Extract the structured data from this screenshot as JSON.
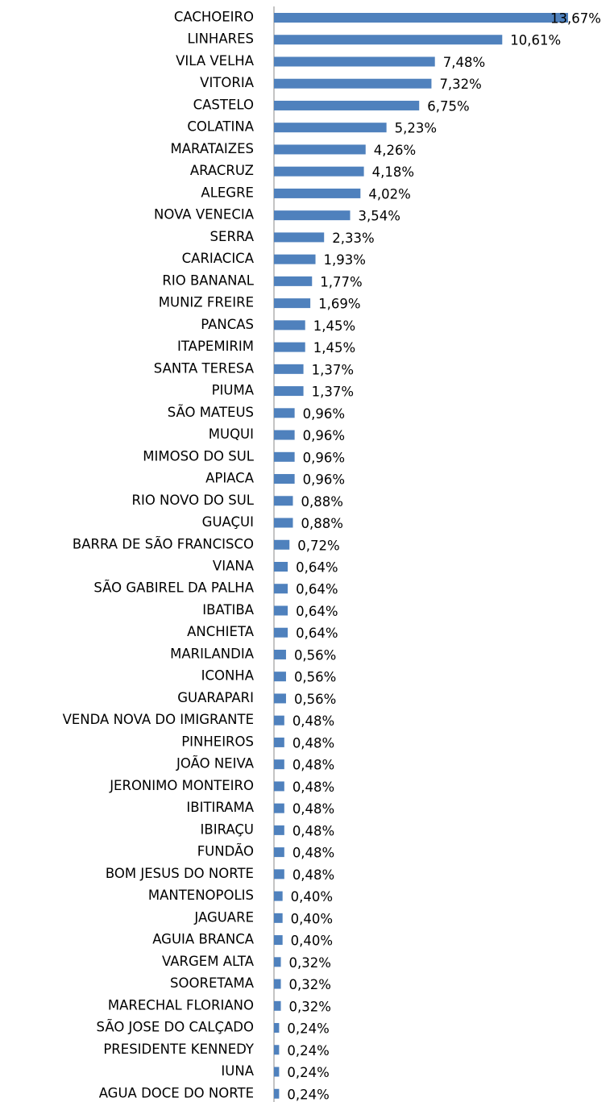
{
  "chart_data": {
    "type": "bar",
    "orientation": "horizontal",
    "color": "#4f81bd",
    "categories": [
      "CACHOEIRO",
      "LINHARES",
      "VILA VELHA",
      "VITORIA",
      "CASTELO",
      "COLATINA",
      "MARATAIZES",
      "ARACRUZ",
      "ALEGRE",
      "NOVA VENECIA",
      "SERRA",
      "CARIACICA",
      "RIO BANANAL",
      "MUNIZ FREIRE",
      "PANCAS",
      "ITAPEMIRIM",
      "SANTA TERESA",
      "PIUMA",
      "SÃO MATEUS",
      "MUQUI",
      "MIMOSO DO SUL",
      "APIACA",
      "RIO NOVO DO SUL",
      "GUAÇUI",
      "BARRA DE SÃO FRANCISCO",
      "VIANA",
      "SÃO GABIREL  DA PALHA",
      "IBATIBA",
      "ANCHIETA",
      "MARILANDIA",
      "ICONHA",
      "GUARAPARI",
      "VENDA NOVA DO IMIGRANTE",
      "PINHEIROS",
      "JOÃO NEIVA",
      "JERONIMO MONTEIRO",
      "IBITIRAMA",
      "IBIRAÇU",
      "FUNDÃO",
      "BOM JESUS DO NORTE",
      "MANTENOPOLIS",
      "JAGUARE",
      "AGUIA BRANCA",
      "VARGEM ALTA",
      "SOORETAMA",
      "MARECHAL FLORIANO",
      "SÃO JOSE DO CALÇADO",
      "PRESIDENTE KENNEDY",
      "IUNA",
      "AGUA DOCE DO NORTE"
    ],
    "values": [
      13.67,
      10.61,
      7.48,
      7.32,
      6.75,
      5.23,
      4.26,
      4.18,
      4.02,
      3.54,
      2.33,
      1.93,
      1.77,
      1.69,
      1.45,
      1.45,
      1.37,
      1.37,
      0.96,
      0.96,
      0.96,
      0.96,
      0.88,
      0.88,
      0.72,
      0.64,
      0.64,
      0.64,
      0.64,
      0.56,
      0.56,
      0.56,
      0.48,
      0.48,
      0.48,
      0.48,
      0.48,
      0.48,
      0.48,
      0.48,
      0.4,
      0.4,
      0.4,
      0.32,
      0.32,
      0.32,
      0.24,
      0.24,
      0.24,
      0.24
    ],
    "value_labels": [
      "13,67%",
      "10,61%",
      "7,48%",
      "7,32%",
      "6,75%",
      "5,23%",
      "4,26%",
      "4,18%",
      "4,02%",
      "3,54%",
      "2,33%",
      "1,93%",
      "1,77%",
      "1,69%",
      "1,45%",
      "1,45%",
      "1,37%",
      "1,37%",
      "0,96%",
      "0,96%",
      "0,96%",
      "0,96%",
      "0,88%",
      "0,88%",
      "0,72%",
      "0,64%",
      "0,64%",
      "0,64%",
      "0,64%",
      "0,56%",
      "0,56%",
      "0,56%",
      "0,48%",
      "0,48%",
      "0,48%",
      "0,48%",
      "0,48%",
      "0,48%",
      "0,48%",
      "0,48%",
      "0,40%",
      "0,40%",
      "0,40%",
      "0,32%",
      "0,32%",
      "0,32%",
      "0,24%",
      "0,24%",
      "0,24%",
      "0,24%"
    ]
  }
}
